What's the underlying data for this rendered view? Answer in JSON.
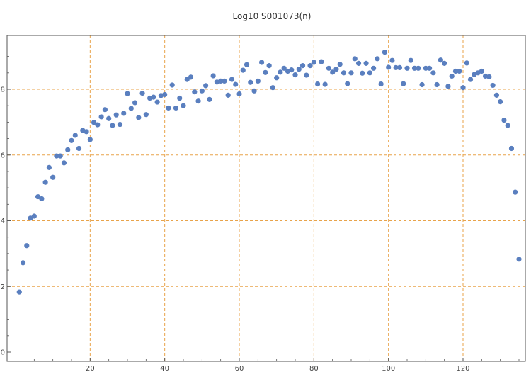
{
  "chart_data": {
    "type": "scatter",
    "title": "Log10 S001073(n)",
    "xlabel": "",
    "ylabel": "",
    "xlim": [
      0,
      136
    ],
    "ylim": [
      -0.1,
      9.5
    ],
    "xticks": [
      20,
      40,
      60,
      80,
      100,
      120
    ],
    "yticks": [
      0,
      2,
      4,
      6,
      8
    ],
    "grid": "dashed orange at major ticks",
    "colors": {
      "points": "#5a7fbf",
      "grid": "#e8a34a",
      "axis": "#555555"
    },
    "series": [
      {
        "x": [
          1,
          2,
          3,
          4,
          5,
          6,
          7,
          8,
          9,
          10,
          11,
          12,
          13,
          14,
          15,
          16,
          17,
          18,
          19,
          20,
          21,
          22,
          23,
          24,
          25,
          26,
          27,
          28,
          29,
          30,
          31,
          32,
          33,
          34,
          35,
          36,
          37,
          38,
          39,
          40,
          41,
          42,
          43,
          44,
          45,
          46,
          47,
          48,
          49,
          50,
          51,
          52,
          53,
          54,
          55,
          56,
          57,
          58,
          59,
          60,
          61,
          62,
          63,
          64,
          65,
          66,
          67,
          68,
          69,
          70,
          71,
          72,
          73,
          74,
          75,
          76,
          77,
          78,
          79,
          80,
          81,
          82,
          83,
          84,
          85,
          86,
          87,
          88,
          89,
          90,
          91,
          92,
          93,
          94,
          95,
          96,
          97,
          98,
          99,
          100,
          101,
          102,
          103,
          104,
          105,
          106,
          107,
          108,
          109,
          110,
          111,
          112,
          113,
          114,
          115,
          116,
          117,
          118,
          119,
          120,
          121,
          122,
          123,
          124,
          125,
          126,
          127,
          128,
          129,
          130,
          131,
          132,
          133,
          134,
          135
        ],
        "y": [
          1.83,
          2.72,
          3.24,
          4.08,
          4.14,
          4.73,
          4.67,
          5.17,
          5.62,
          5.32,
          5.97,
          5.97,
          5.76,
          6.16,
          6.44,
          6.6,
          6.2,
          6.75,
          6.71,
          6.47,
          6.99,
          6.92,
          7.16,
          7.38,
          7.11,
          6.9,
          7.22,
          6.93,
          7.27,
          7.87,
          7.42,
          7.59,
          7.14,
          7.88,
          7.23,
          7.73,
          7.76,
          7.61,
          7.81,
          7.84,
          7.43,
          8.13,
          7.43,
          7.73,
          7.5,
          8.3,
          8.37,
          7.92,
          7.64,
          7.95,
          8.11,
          7.69,
          8.41,
          8.22,
          8.25,
          8.25,
          7.82,
          8.3,
          8.15,
          7.86,
          8.58,
          8.75,
          8.21,
          7.95,
          8.25,
          8.82,
          8.51,
          8.72,
          8.05,
          8.35,
          8.52,
          8.64,
          8.55,
          8.59,
          8.44,
          8.61,
          8.72,
          8.43,
          8.72,
          8.82,
          8.16,
          8.84,
          8.15,
          8.64,
          8.52,
          8.61,
          8.76,
          8.5,
          8.17,
          8.5,
          8.93,
          8.79,
          8.49,
          8.79,
          8.5,
          8.64,
          8.93,
          8.16,
          9.13,
          8.67,
          8.88,
          8.66,
          8.66,
          8.17,
          8.64,
          8.88,
          8.64,
          8.64,
          8.14,
          8.64,
          8.64,
          8.5,
          8.14,
          8.89,
          8.79,
          8.09,
          8.4,
          8.55,
          8.55,
          8.05,
          8.8,
          8.3,
          8.45,
          8.5,
          8.55,
          8.4,
          8.38,
          8.12,
          7.82,
          7.62,
          7.06,
          6.9,
          6.2,
          4.87,
          2.83
        ]
      }
    ]
  }
}
